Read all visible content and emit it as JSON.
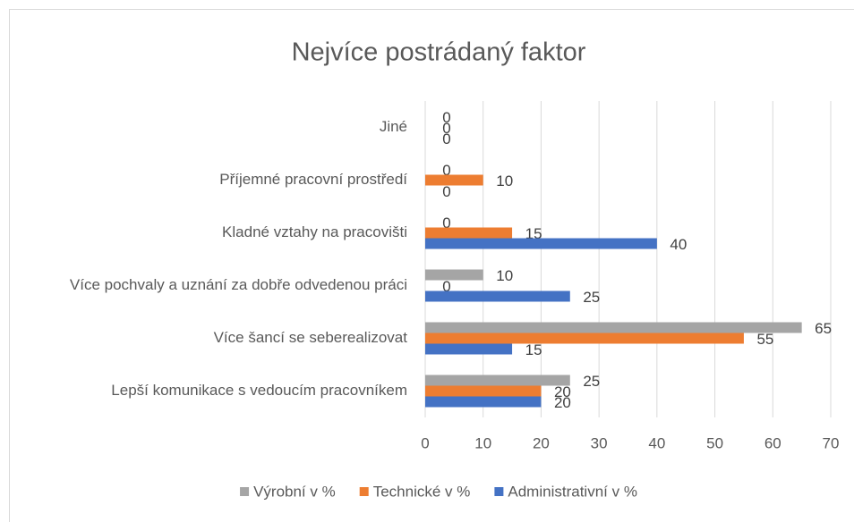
{
  "chart_data": {
    "type": "hbar",
    "title": "Nejvíce postrádaný faktor",
    "categories": [
      "Lepší komunikace s vedoucím pracovníkem",
      "Více šancí se seberealizovat",
      "Více pochvaly a uznání za dobře odvedenou práci",
      "Kladné vztahy na pracovišti",
      "Příjemné pracovní prostředí",
      "Jiné"
    ],
    "series": [
      {
        "name": "Výrobní v %",
        "color": "#a5a5a5",
        "values": [
          25,
          65,
          10,
          0,
          0,
          0
        ]
      },
      {
        "name": "Technické v %",
        "color": "#ed7d31",
        "values": [
          20,
          55,
          0,
          15,
          10,
          0
        ]
      },
      {
        "name": "Administrativní v %",
        "color": "#4472c4",
        "values": [
          20,
          15,
          25,
          40,
          0,
          0
        ]
      }
    ],
    "xlim": [
      0,
      70
    ],
    "xticks": [
      0,
      10,
      20,
      30,
      40,
      50,
      60,
      70
    ],
    "grid": true,
    "legend": "bottom"
  }
}
